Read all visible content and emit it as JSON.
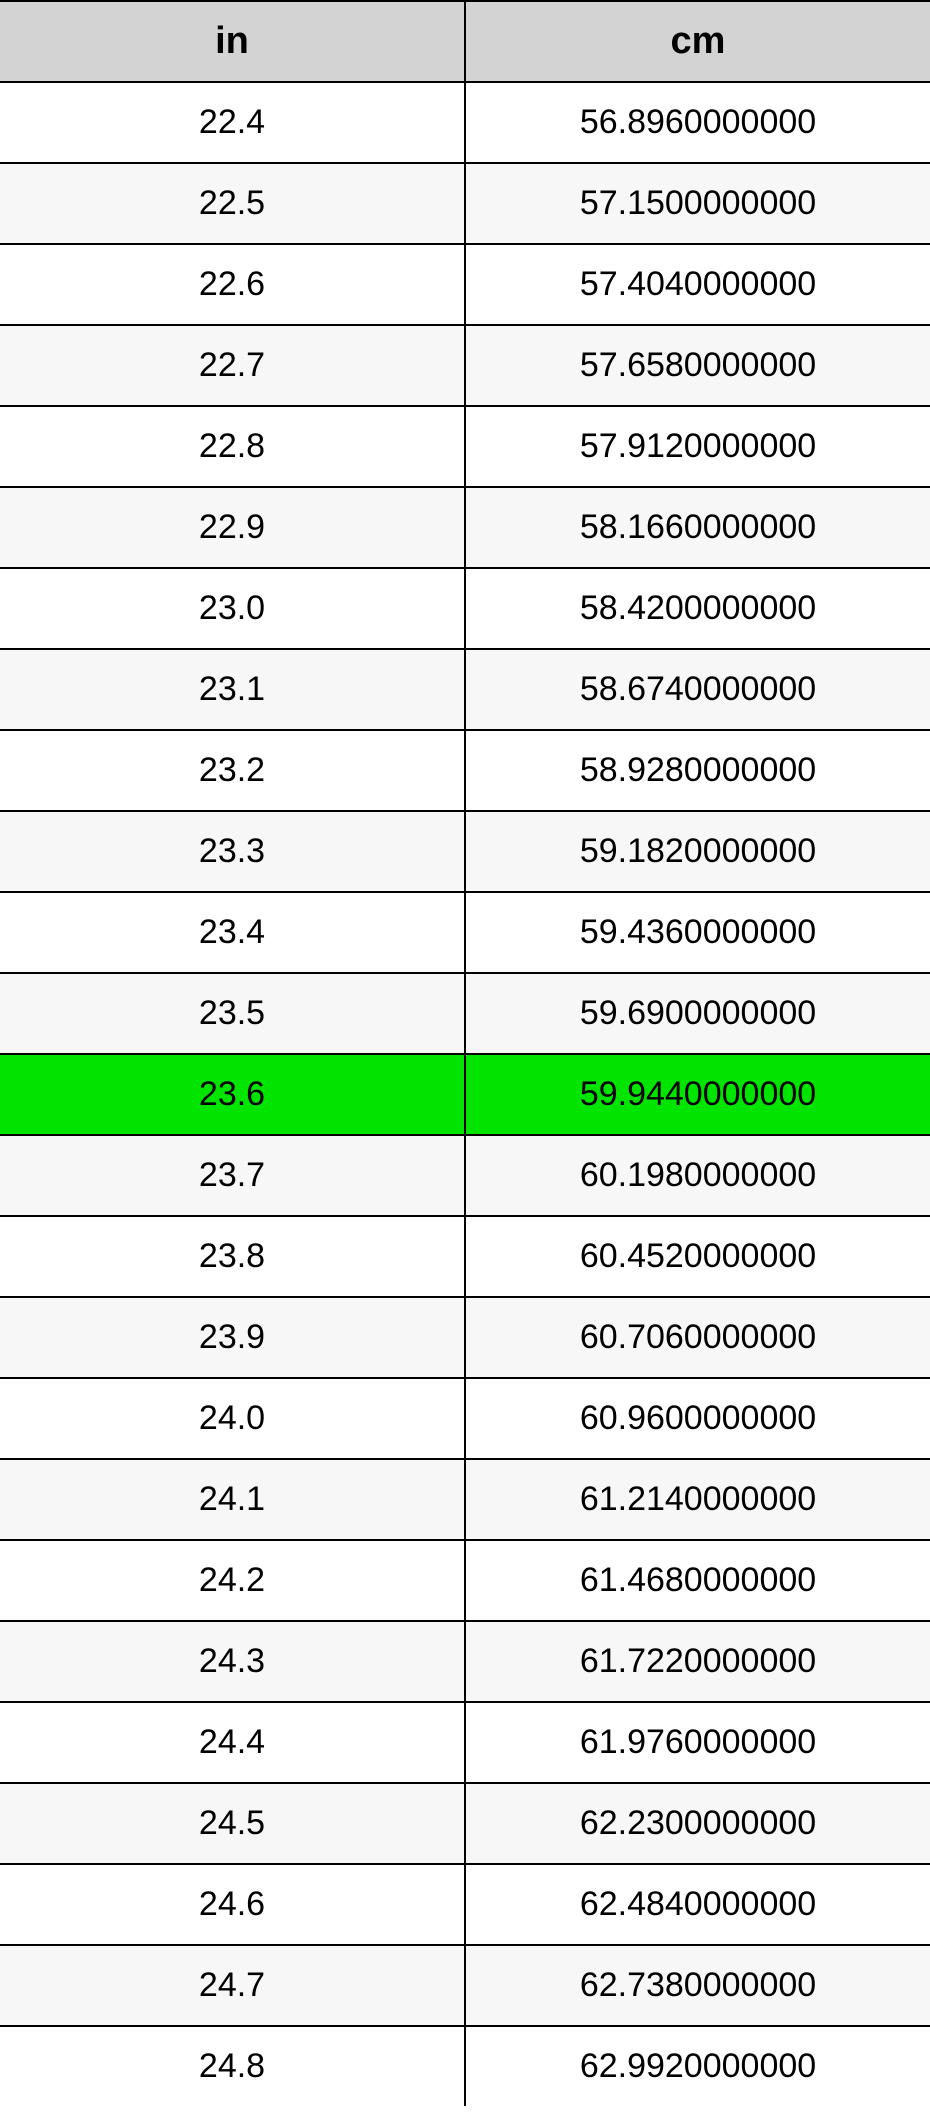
{
  "table": {
    "columns": [
      "in",
      "cm"
    ],
    "header_bg": "#d3d3d3",
    "border_color": "#000000",
    "alt_row_bg": "#f7f7f7",
    "highlight_bg": "#00e400",
    "header_fontsize": 38,
    "cell_fontsize": 34,
    "rows": [
      {
        "in": "22.4",
        "cm": "56.8960000000",
        "highlight": false
      },
      {
        "in": "22.5",
        "cm": "57.1500000000",
        "highlight": false
      },
      {
        "in": "22.6",
        "cm": "57.4040000000",
        "highlight": false
      },
      {
        "in": "22.7",
        "cm": "57.6580000000",
        "highlight": false
      },
      {
        "in": "22.8",
        "cm": "57.9120000000",
        "highlight": false
      },
      {
        "in": "22.9",
        "cm": "58.1660000000",
        "highlight": false
      },
      {
        "in": "23.0",
        "cm": "58.4200000000",
        "highlight": false
      },
      {
        "in": "23.1",
        "cm": "58.6740000000",
        "highlight": false
      },
      {
        "in": "23.2",
        "cm": "58.9280000000",
        "highlight": false
      },
      {
        "in": "23.3",
        "cm": "59.1820000000",
        "highlight": false
      },
      {
        "in": "23.4",
        "cm": "59.4360000000",
        "highlight": false
      },
      {
        "in": "23.5",
        "cm": "59.6900000000",
        "highlight": false
      },
      {
        "in": "23.6",
        "cm": "59.9440000000",
        "highlight": true
      },
      {
        "in": "23.7",
        "cm": "60.1980000000",
        "highlight": false
      },
      {
        "in": "23.8",
        "cm": "60.4520000000",
        "highlight": false
      },
      {
        "in": "23.9",
        "cm": "60.7060000000",
        "highlight": false
      },
      {
        "in": "24.0",
        "cm": "60.9600000000",
        "highlight": false
      },
      {
        "in": "24.1",
        "cm": "61.2140000000",
        "highlight": false
      },
      {
        "in": "24.2",
        "cm": "61.4680000000",
        "highlight": false
      },
      {
        "in": "24.3",
        "cm": "61.7220000000",
        "highlight": false
      },
      {
        "in": "24.4",
        "cm": "61.9760000000",
        "highlight": false
      },
      {
        "in": "24.5",
        "cm": "62.2300000000",
        "highlight": false
      },
      {
        "in": "24.6",
        "cm": "62.4840000000",
        "highlight": false
      },
      {
        "in": "24.7",
        "cm": "62.7380000000",
        "highlight": false
      },
      {
        "in": "24.8",
        "cm": "62.9920000000",
        "highlight": false
      }
    ]
  }
}
